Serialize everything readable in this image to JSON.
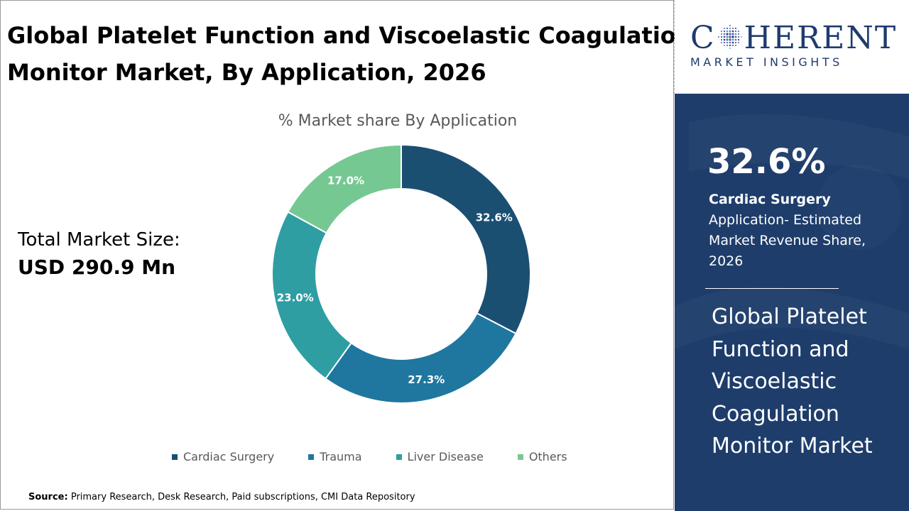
{
  "header": {
    "title_line1": "Global Platelet Function and Viscoelastic Coagulation",
    "title_line2": "Monitor Market, By Application, 2026"
  },
  "market_size": {
    "label": "Total Market Size:",
    "value": "USD 290.9 Mn"
  },
  "source": {
    "label": "Source:",
    "text": "Primary Research, Desk Research, Paid subscriptions, CMI Data Repository"
  },
  "logo": {
    "main_prefix": "C",
    "main_suffix": "HERENT",
    "sub": "MARKET INSIGHTS",
    "color": "#1f3b6e"
  },
  "side_panel": {
    "highlight_value": "32.6%",
    "highlight_category": "Cardiac Surgery",
    "highlight_desc": "Application- Estimated Market Revenue Share, 2026",
    "market_name": "Global Platelet Function and Viscoelastic Coagulation Monitor Market",
    "background": "#1e3d6b"
  },
  "chart_data": {
    "type": "pie",
    "title": "% Market share By Application",
    "donut": true,
    "categories": [
      "Cardiac Surgery",
      "Trauma",
      "Liver Disease",
      "Others"
    ],
    "values": [
      32.6,
      27.3,
      23.0,
      17.0
    ],
    "labels": [
      "32.6%",
      "27.3%",
      "23.0%",
      "17.0%"
    ],
    "colors": [
      "#1b4f72",
      "#1f77a0",
      "#2e9ea3",
      "#76c893"
    ],
    "legend": "bottom"
  }
}
